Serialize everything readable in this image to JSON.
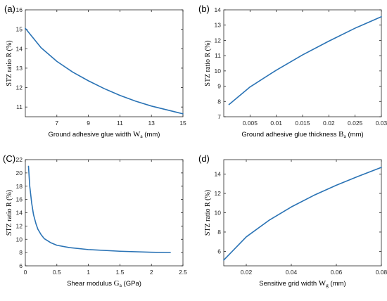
{
  "chart_data": [
    {
      "panel_label": "(a)",
      "type": "line",
      "xlabel": "Ground adhesive glue width",
      "xlabel_symbol": "W",
      "xlabel_sub": "a",
      "xlabel_unit": "(mm)",
      "ylabel": "STZ ratio R (%)",
      "xlim": [
        5,
        15
      ],
      "ylim": [
        10.5,
        16
      ],
      "xticks": [
        7,
        9,
        11,
        13,
        15
      ],
      "yticks": [
        11,
        12,
        13,
        14,
        15,
        16
      ],
      "xtick_labels": [
        "7",
        "9",
        "11",
        "13",
        "15"
      ],
      "ytick_labels": [
        "11",
        "12",
        "13",
        "14",
        "15",
        "16"
      ],
      "line_color": "#2a73b5",
      "series": [
        {
          "x": [
            5,
            6,
            7,
            8,
            9,
            10,
            11,
            12,
            13,
            14,
            15
          ],
          "y": [
            15.05,
            14.05,
            13.35,
            12.8,
            12.35,
            11.95,
            11.6,
            11.3,
            11.05,
            10.85,
            10.65
          ]
        }
      ]
    },
    {
      "panel_label": "(b)",
      "type": "line",
      "xlabel": "Ground adhesive glue thickness",
      "xlabel_symbol": "B",
      "xlabel_sub": "a",
      "xlabel_unit": "(mm)",
      "ylabel": "STZ ratio R (%)",
      "xlim": [
        0,
        0.03
      ],
      "ylim": [
        7,
        14
      ],
      "xticks": [
        0.005,
        0.01,
        0.015,
        0.02,
        0.025,
        0.03
      ],
      "yticks": [
        7,
        8,
        9,
        10,
        11,
        12,
        13,
        14
      ],
      "xtick_labels": [
        "0.005",
        "0.01",
        "0.015",
        "0.02",
        "0.025",
        "0.03"
      ],
      "ytick_labels": [
        "7",
        "8",
        "9",
        "10",
        "11",
        "12",
        "13",
        "14"
      ],
      "line_color": "#2a73b5",
      "series": [
        {
          "x": [
            0.001,
            0.005,
            0.01,
            0.015,
            0.02,
            0.025,
            0.03
          ],
          "y": [
            7.8,
            8.95,
            10.05,
            11.05,
            11.95,
            12.8,
            13.55
          ]
        }
      ]
    },
    {
      "panel_label": "(C)",
      "type": "line",
      "xlabel": "Shear modulus",
      "xlabel_symbol": "G",
      "xlabel_sub": "a",
      "xlabel_unit": "(GPa)",
      "ylabel": "STZ ratio R (%)",
      "xlim": [
        0,
        2.5
      ],
      "ylim": [
        6,
        22
      ],
      "xticks": [
        0,
        0.5,
        1,
        1.5,
        2,
        2.5
      ],
      "yticks": [
        6,
        8,
        10,
        12,
        14,
        16,
        18,
        20,
        22
      ],
      "xtick_labels": [
        "0",
        "0.5",
        "1",
        "1.5",
        "2",
        "2.5"
      ],
      "ytick_labels": [
        "6",
        "8",
        "10",
        "12",
        "14",
        "16",
        "18",
        "20",
        "22"
      ],
      "line_color": "#2a73b5",
      "series": [
        {
          "x": [
            0.05,
            0.07,
            0.1,
            0.13,
            0.17,
            0.2,
            0.25,
            0.3,
            0.4,
            0.5,
            0.7,
            1.0,
            1.5,
            2.0,
            2.3
          ],
          "y": [
            21.0,
            18.0,
            15.5,
            13.7,
            12.3,
            11.5,
            10.7,
            10.1,
            9.5,
            9.1,
            8.75,
            8.45,
            8.2,
            8.05,
            8.0
          ]
        }
      ]
    },
    {
      "panel_label": "(d)",
      "type": "line",
      "xlabel": "Sensitive grid width",
      "xlabel_symbol": "W",
      "xlabel_sub": "g",
      "xlabel_unit": "(mm)",
      "ylabel": "STZ ratio R (%)",
      "xlim": [
        0.01,
        0.08
      ],
      "ylim": [
        4.5,
        15.5
      ],
      "xticks": [
        0.02,
        0.04,
        0.06,
        0.08
      ],
      "yticks": [
        6,
        8,
        10,
        12,
        14
      ],
      "xtick_labels": [
        "0.02",
        "0.04",
        "0.06",
        "0.08"
      ],
      "ytick_labels": [
        "6",
        "8",
        "10",
        "12",
        "14"
      ],
      "line_color": "#2a73b5",
      "series": [
        {
          "x": [
            0.01,
            0.02,
            0.03,
            0.04,
            0.05,
            0.06,
            0.07,
            0.08
          ],
          "y": [
            5.1,
            7.5,
            9.2,
            10.6,
            11.8,
            12.85,
            13.8,
            14.7
          ]
        }
      ]
    }
  ]
}
